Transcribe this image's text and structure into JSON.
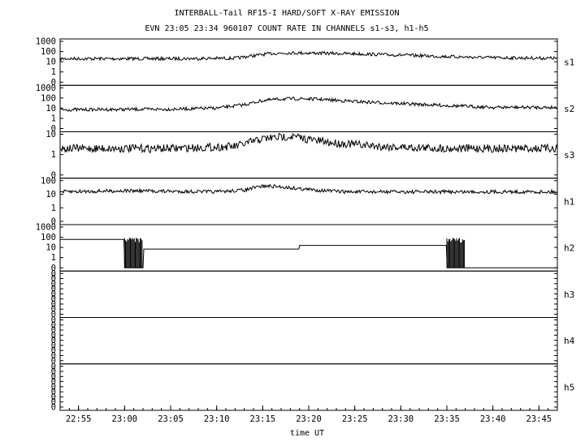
{
  "chart_data": {
    "type": "line",
    "title": "INTERBALL-Tail RF15-I HARD/SOFT X-RAY EMISSION",
    "subtitle": "EVN 23:05 23:34 960107  COUNT RATE IN CHANNELS s1-s3, h1-h5",
    "xlabel": "time UT",
    "x_ticks": [
      "22:55",
      "23:00",
      "23:05",
      "23:10",
      "23:15",
      "23:20",
      "23:25",
      "23:30",
      "23:35",
      "23:40",
      "23:45"
    ],
    "x_range": [
      "22:53",
      "23:47"
    ],
    "y_scale": "log",
    "grid": false,
    "panels": [
      {
        "name": "s1",
        "yticks": [
          "1000",
          "100",
          "10",
          "1",
          "0"
        ],
        "series": {
          "x": [
            "22:53",
            "23:05",
            "23:12",
            "23:14",
            "23:16",
            "23:18",
            "23:20",
            "23:25",
            "23:30",
            "23:35",
            "23:40",
            "23:47"
          ],
          "y": [
            20,
            20,
            22,
            40,
            65,
            75,
            72,
            60,
            45,
            32,
            25,
            22
          ]
        }
      },
      {
        "name": "s2",
        "yticks": [
          "1000",
          "100",
          "10",
          "1",
          "0"
        ],
        "series": {
          "x": [
            "22:53",
            "23:05",
            "23:10",
            "23:13",
            "23:15",
            "23:17",
            "23:19",
            "23:21",
            "23:25",
            "23:30",
            "23:35",
            "23:40",
            "23:47"
          ],
          "y": [
            7,
            8,
            10,
            22,
            55,
            80,
            85,
            75,
            45,
            28,
            18,
            12,
            12
          ]
        }
      },
      {
        "name": "s3",
        "yticks": [
          "10",
          "1",
          "0"
        ],
        "series": {
          "x": [
            "22:53",
            "23:05",
            "23:12",
            "23:15",
            "23:18",
            "23:22",
            "23:28",
            "23:35",
            "23:47"
          ],
          "y": [
            2,
            2,
            2.5,
            6,
            8,
            4,
            2.5,
            2,
            2
          ]
        }
      },
      {
        "name": "h1",
        "yticks": [
          "100",
          "10",
          "1",
          "0"
        ],
        "series": {
          "x": [
            "22:53",
            "23:00",
            "23:10",
            "23:13",
            "23:15",
            "23:17",
            "23:20",
            "23:24",
            "23:35",
            "23:47"
          ],
          "y": [
            15,
            18,
            15,
            20,
            40,
            35,
            22,
            15,
            15,
            15
          ]
        }
      },
      {
        "name": "h2",
        "yticks": [
          "1000",
          "100",
          "10",
          "1",
          "0"
        ],
        "series": {
          "x": [
            "22:53",
            "23:00",
            "23:00",
            "23:02",
            "23:02",
            "23:19",
            "23:19",
            "23:35",
            "23:35",
            "23:47"
          ],
          "y": [
            60,
            60,
            0,
            0,
            7,
            7,
            16,
            16,
            0,
            0
          ]
        }
      },
      {
        "name": "h3",
        "yticks": [
          "0",
          "0",
          "0",
          "0",
          "0",
          "0",
          "0",
          "0",
          "0"
        ],
        "series": {
          "x": [],
          "y": []
        }
      },
      {
        "name": "h4",
        "yticks": [
          "0",
          "0",
          "0",
          "0",
          "0",
          "0",
          "0",
          "0",
          "0"
        ],
        "series": {
          "x": [],
          "y": []
        }
      },
      {
        "name": "h5",
        "yticks": [
          "0",
          "0",
          "0",
          "0",
          "0",
          "0",
          "0",
          "0",
          "0"
        ],
        "series": {
          "x": [],
          "y": []
        }
      }
    ]
  }
}
